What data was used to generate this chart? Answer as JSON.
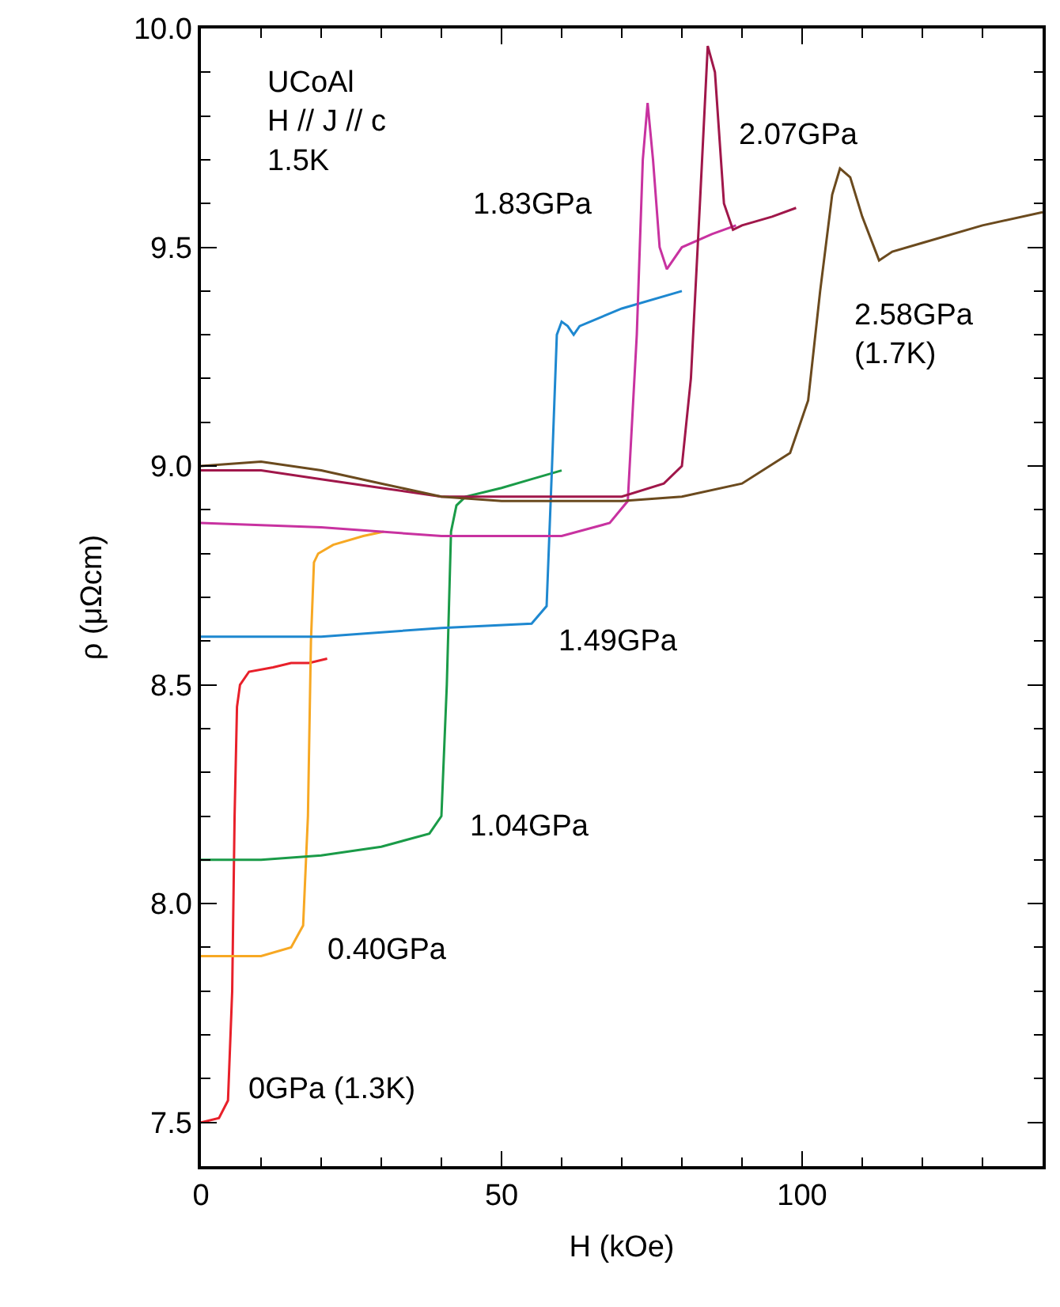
{
  "chart_data": {
    "type": "line",
    "xlabel": "H (kOe)",
    "ylabel": "ρ (μΩcm)",
    "xlim": [
      0,
      140
    ],
    "ylim": [
      7.4,
      10.0
    ],
    "xticks": [
      0,
      {
        "value": 10,
        "label": null
      },
      {
        "value": 20,
        "label": null
      },
      {
        "value": 30,
        "label": null
      },
      {
        "value": 40,
        "label": null
      },
      50,
      {
        "value": 60,
        "label": null
      },
      {
        "value": 70,
        "label": null
      },
      {
        "value": 80,
        "label": null
      },
      {
        "value": 90,
        "label": null
      },
      100,
      {
        "value": 110,
        "label": null
      },
      {
        "value": 120,
        "label": null
      },
      {
        "value": 130,
        "label": null
      },
      {
        "value": 140,
        "label": null
      }
    ],
    "yticks": [
      7.5,
      {
        "value": 7.6,
        "label": null
      },
      {
        "value": 7.7,
        "label": null
      },
      {
        "value": 7.8,
        "label": null
      },
      {
        "value": 7.9,
        "label": null
      },
      {
        "value": 8.0,
        "label": "8.0"
      },
      {
        "value": 8.1,
        "label": null
      },
      {
        "value": 8.2,
        "label": null
      },
      {
        "value": 8.3,
        "label": null
      },
      {
        "value": 8.4,
        "label": null
      },
      8.5,
      {
        "value": 8.6,
        "label": null
      },
      {
        "value": 8.7,
        "label": null
      },
      {
        "value": 8.8,
        "label": null
      },
      {
        "value": 8.9,
        "label": null
      },
      {
        "value": 9.0,
        "label": "9.0"
      },
      {
        "value": 9.1,
        "label": null
      },
      {
        "value": 9.2,
        "label": null
      },
      {
        "value": 9.3,
        "label": null
      },
      {
        "value": 9.4,
        "label": null
      },
      9.5,
      {
        "value": 9.6,
        "label": null
      },
      {
        "value": 9.7,
        "label": null
      },
      {
        "value": 9.8,
        "label": null
      },
      {
        "value": 9.9,
        "label": null
      },
      {
        "value": 10.0,
        "label": "10.0"
      }
    ],
    "legend": false,
    "marker": "none",
    "line_style": "solid",
    "series": [
      {
        "name": "0GPa (1.3K)",
        "color": "#e8202a",
        "x": [
          0,
          3,
          4.5,
          5.2,
          5.6,
          6.0,
          6.5,
          8,
          12,
          15,
          18,
          21
        ],
        "values": [
          7.5,
          7.51,
          7.55,
          7.8,
          8.2,
          8.45,
          8.5,
          8.53,
          8.54,
          8.55,
          8.55,
          8.56
        ]
      },
      {
        "name": "0.40GPa",
        "color": "#f7a823",
        "x": [
          0,
          10,
          15,
          17,
          17.8,
          18.3,
          18.8,
          19.5,
          22,
          27,
          30.4
        ],
        "values": [
          7.88,
          7.88,
          7.9,
          7.95,
          8.2,
          8.6,
          8.78,
          8.8,
          8.82,
          8.84,
          8.85
        ]
      },
      {
        "name": "1.04GPa",
        "color": "#1a9b48",
        "x": [
          0,
          10,
          20,
          30,
          38,
          40,
          40.9,
          41.6,
          42.5,
          44,
          50,
          55,
          60
        ],
        "values": [
          8.1,
          8.1,
          8.11,
          8.13,
          8.16,
          8.2,
          8.5,
          8.85,
          8.91,
          8.93,
          8.95,
          8.97,
          8.99
        ]
      },
      {
        "name": "1.49GPa",
        "color": "#1e88d0",
        "x": [
          0,
          20,
          40,
          55,
          57.5,
          58.4,
          59.2,
          60,
          61,
          62,
          63,
          70,
          80
        ],
        "values": [
          8.61,
          8.61,
          8.63,
          8.64,
          8.68,
          9.0,
          9.3,
          9.33,
          9.32,
          9.3,
          9.32,
          9.36,
          9.4
        ]
      },
      {
        "name": "1.83GPa",
        "color": "#c832a0",
        "x": [
          0,
          20,
          40,
          60,
          68,
          71,
          72.5,
          73.5,
          74.3,
          75.2,
          76.3,
          77.5,
          80,
          85,
          89
        ],
        "values": [
          8.87,
          8.86,
          8.84,
          8.84,
          8.87,
          8.92,
          9.3,
          9.7,
          9.83,
          9.7,
          9.5,
          9.45,
          9.5,
          9.53,
          9.55
        ]
      },
      {
        "name": "2.07GPa",
        "color": "#a0174a",
        "x": [
          0,
          10,
          20,
          30,
          40,
          60,
          70,
          77,
          80,
          81.5,
          83,
          84.3,
          85.5,
          87,
          88.5,
          90,
          95,
          99
        ],
        "values": [
          8.99,
          8.99,
          8.97,
          8.95,
          8.93,
          8.93,
          8.93,
          8.96,
          9.0,
          9.2,
          9.6,
          9.96,
          9.9,
          9.6,
          9.54,
          9.55,
          9.57,
          9.59
        ]
      },
      {
        "name": "2.58GPa\n(1.7K)",
        "color": "#6b4a1e",
        "x": [
          0,
          10,
          20,
          30,
          40,
          50,
          70,
          80,
          90,
          98,
          101,
          103,
          105,
          106.3,
          108,
          110,
          112.8,
          115,
          120,
          130,
          140
        ],
        "values": [
          9.0,
          9.01,
          8.99,
          8.96,
          8.93,
          8.92,
          8.92,
          8.93,
          8.96,
          9.03,
          9.15,
          9.4,
          9.62,
          9.68,
          9.66,
          9.57,
          9.47,
          9.49,
          9.51,
          9.55,
          9.58
        ]
      }
    ],
    "annotations": [
      "UCoAl\nH // J // c\n1.5K"
    ]
  }
}
